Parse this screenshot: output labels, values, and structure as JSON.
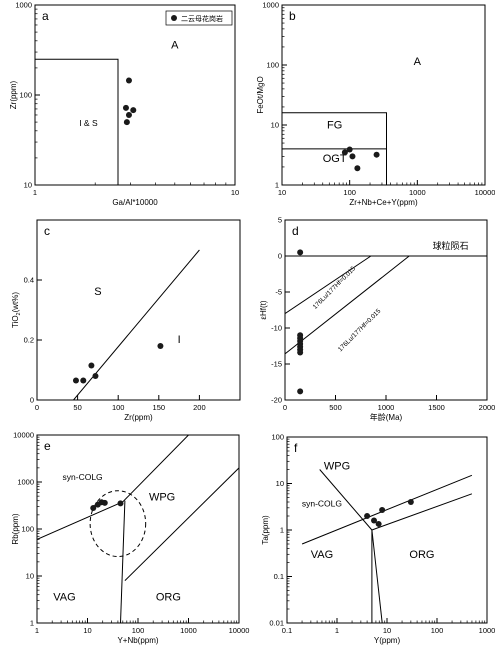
{
  "chart_data": [
    {
      "id": "a",
      "type": "scatter",
      "panel_label": "a",
      "xlabel": "Ga/Al*10000",
      "ylabel": "Zr(ppm)",
      "x_scale": "log",
      "y_scale": "log",
      "xlim": [
        1,
        10
      ],
      "ylim": [
        10,
        1000
      ],
      "x_ticks": [
        1,
        10
      ],
      "y_ticks": [
        10,
        100,
        1000
      ],
      "legend": {
        "label": "二云母花岗岩",
        "position": "top-right"
      },
      "fields": [
        {
          "label": "A",
          "x": 5.0,
          "y": 330
        },
        {
          "label": "I & S",
          "x": 1.85,
          "y": 45
        }
      ],
      "lines": [
        [
          [
            1,
            250
          ],
          [
            2.6,
            250
          ],
          [
            2.6,
            10
          ]
        ]
      ],
      "points": [
        {
          "x": 2.95,
          "y": 145
        },
        {
          "x": 2.85,
          "y": 72
        },
        {
          "x": 3.1,
          "y": 68
        },
        {
          "x": 2.95,
          "y": 60
        },
        {
          "x": 2.88,
          "y": 50
        }
      ]
    },
    {
      "id": "b",
      "type": "scatter",
      "panel_label": "b",
      "xlabel": "Zr+Nb+Ce+Y(ppm)",
      "ylabel": "FeOt/MgO",
      "x_scale": "log",
      "y_scale": "log",
      "xlim": [
        10,
        10000
      ],
      "ylim": [
        1,
        1000
      ],
      "x_ticks": [
        10,
        100,
        1000,
        10000
      ],
      "y_ticks": [
        1,
        10,
        100,
        1000
      ],
      "fields": [
        {
          "label": "A",
          "x": 1000,
          "y": 100
        },
        {
          "label": "FG",
          "x": 60,
          "y": 8.8
        },
        {
          "label": "OGT",
          "x": 60,
          "y": 2.4
        }
      ],
      "lines": [
        [
          [
            10,
            16
          ],
          [
            350,
            16
          ],
          [
            350,
            1
          ]
        ],
        [
          [
            10,
            4
          ],
          [
            350,
            4
          ]
        ]
      ],
      "points": [
        {
          "x": 85,
          "y": 3.5
        },
        {
          "x": 100,
          "y": 3.9
        },
        {
          "x": 110,
          "y": 3.0
        },
        {
          "x": 130,
          "y": 1.9
        },
        {
          "x": 250,
          "y": 3.2
        }
      ]
    },
    {
      "id": "c",
      "type": "scatter",
      "panel_label": "c",
      "xlabel": "Zr(ppm)",
      "ylabel": "TiO2(wt%)",
      "ylabel_parts": [
        "TiO",
        "2",
        "(wt%)"
      ],
      "x_scale": "linear",
      "y_scale": "linear",
      "xlim": [
        0,
        250
      ],
      "ylim": [
        0,
        0.6
      ],
      "x_ticks": [
        0,
        50,
        100,
        150,
        200
      ],
      "y_ticks": [
        0,
        0.2,
        0.4
      ],
      "fields": [
        {
          "label": "S",
          "x": 75,
          "y": 0.35
        },
        {
          "label": "I",
          "x": 175,
          "y": 0.19
        }
      ],
      "lines": [
        [
          [
            45,
            0
          ],
          [
            200,
            0.5
          ]
        ]
      ],
      "points": [
        {
          "x": 48,
          "y": 0.065
        },
        {
          "x": 57,
          "y": 0.065
        },
        {
          "x": 67,
          "y": 0.115
        },
        {
          "x": 72,
          "y": 0.08
        },
        {
          "x": 152,
          "y": 0.18
        }
      ]
    },
    {
      "id": "d",
      "type": "scatter",
      "panel_label": "d",
      "xlabel": "年龄(Ma)",
      "ylabel": "εHf(t)",
      "x_scale": "linear",
      "y_scale": "linear",
      "xlim": [
        0,
        2000
      ],
      "ylim": [
        -20,
        5
      ],
      "x_ticks": [
        0,
        500,
        1000,
        1500,
        2000
      ],
      "y_ticks": [
        -20,
        -15,
        -10,
        -5,
        0,
        5
      ],
      "annotations": [
        {
          "label": "球粒陨石",
          "x": 1640,
          "y": 1.0
        },
        {
          "label": "176Lu/177Hf=0.015",
          "x": 500,
          "y": -4.6,
          "angle": -45
        },
        {
          "label": "176Lu/177Hf=0.015",
          "x": 750,
          "y": -10.5,
          "angle": -45
        }
      ],
      "lines": [
        [
          [
            0,
            0
          ],
          [
            2000,
            0
          ]
        ],
        [
          [
            0,
            -8
          ],
          [
            850,
            0
          ]
        ],
        [
          [
            0,
            -13.6
          ],
          [
            1230,
            0
          ]
        ]
      ],
      "points": [
        {
          "x": 150,
          "y": 0.5
        },
        {
          "x": 150,
          "y": -11.0
        },
        {
          "x": 150,
          "y": -11.4
        },
        {
          "x": 150,
          "y": -11.8
        },
        {
          "x": 150,
          "y": -12.2
        },
        {
          "x": 150,
          "y": -12.6
        },
        {
          "x": 150,
          "y": -13.0
        },
        {
          "x": 150,
          "y": -13.4
        },
        {
          "x": 150,
          "y": -18.8
        }
      ]
    },
    {
      "id": "e",
      "type": "scatter",
      "panel_label": "e",
      "xlabel": "Y+Nb(ppm)",
      "ylabel": "Rb(ppm)",
      "x_scale": "log",
      "y_scale": "log",
      "xlim": [
        1,
        10000
      ],
      "ylim": [
        1,
        10000
      ],
      "x_ticks": [
        1,
        10,
        100,
        1000,
        10000
      ],
      "y_ticks": [
        1,
        10,
        100,
        1000,
        10000
      ],
      "fields": [
        {
          "label": "syn-COLG",
          "x": 8,
          "y": 1100
        },
        {
          "label": "WPG",
          "x": 300,
          "y": 400
        },
        {
          "label": "VAG",
          "x": 3.5,
          "y": 3
        },
        {
          "label": "ORG",
          "x": 400,
          "y": 3
        }
      ],
      "lines": [
        [
          [
            1,
            60
          ],
          [
            50,
            380
          ]
        ],
        [
          [
            50,
            380
          ],
          [
            1000,
            10000
          ]
        ],
        [
          [
            45,
            1
          ],
          [
            55,
            400
          ]
        ],
        [
          [
            55,
            8
          ],
          [
            10000,
            2000
          ]
        ]
      ],
      "points": [
        {
          "x": 13,
          "y": 280
        },
        {
          "x": 16,
          "y": 330
        },
        {
          "x": 19,
          "y": 370
        },
        {
          "x": 22,
          "y": 360
        },
        {
          "x": 45,
          "y": 350
        }
      ],
      "ellipse": {
        "cx": 40,
        "cy": 130,
        "rx_decades": 0.55,
        "ry_decades": 0.7
      }
    },
    {
      "id": "f",
      "type": "scatter",
      "panel_label": "f",
      "xlabel": "Y(ppm)",
      "ylabel": "Ta(ppm)",
      "x_scale": "log",
      "y_scale": "log",
      "xlim": [
        0.1,
        1000
      ],
      "ylim": [
        0.01,
        100
      ],
      "x_ticks": [
        0.1,
        1,
        10,
        100,
        1000
      ],
      "y_ticks": [
        0.01,
        0.1,
        1,
        10,
        100
      ],
      "fields": [
        {
          "label": "WPG",
          "x": 1.0,
          "y": 20
        },
        {
          "label": "syn-COLG",
          "x": 0.5,
          "y": 3.2
        },
        {
          "label": "VAG",
          "x": 0.5,
          "y": 0.25
        },
        {
          "label": "ORG",
          "x": 50,
          "y": 0.25
        }
      ],
      "lines": [
        [
          [
            0.2,
            0.5
          ],
          [
            500,
            15
          ]
        ],
        [
          [
            0.45,
            20
          ],
          [
            5,
            1
          ]
        ],
        [
          [
            5,
            1
          ],
          [
            500,
            6
          ]
        ],
        [
          [
            5,
            1
          ],
          [
            5,
            0.01
          ]
        ],
        [
          [
            5,
            1
          ],
          [
            8,
            0.01
          ]
        ]
      ],
      "points": [
        {
          "x": 4,
          "y": 2.0
        },
        {
          "x": 5.5,
          "y": 1.6
        },
        {
          "x": 6.8,
          "y": 1.35
        },
        {
          "x": 8,
          "y": 2.7
        },
        {
          "x": 30,
          "y": 4.0
        }
      ]
    }
  ]
}
